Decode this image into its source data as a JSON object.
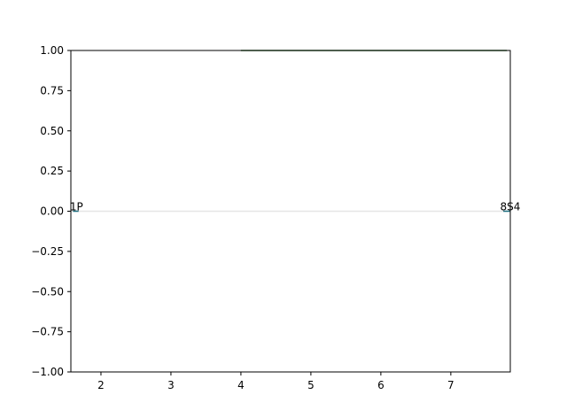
{
  "chart_data": {
    "type": "line",
    "title": "",
    "xlabel": "",
    "ylabel": "",
    "xlim": [
      1.57,
      7.85
    ],
    "ylim": [
      -1.0,
      1.0
    ],
    "x_ticks": [
      2,
      3,
      4,
      5,
      6,
      7
    ],
    "y_ticks": [
      1.0,
      0.75,
      0.5,
      0.25,
      0.0,
      -0.25,
      -0.5,
      -0.75,
      -1.0
    ],
    "x_tick_labels": [
      "2",
      "3",
      "4",
      "5",
      "6",
      "7"
    ],
    "y_tick_labels": [
      "1.00",
      "0.75",
      "0.50",
      "0.25",
      "0.00",
      "−0.25",
      "−0.50",
      "−0.75",
      "−1.00"
    ],
    "grid": false,
    "legend": "none",
    "colors": {
      "teal": "#1f6f80",
      "green": "#3a7a3a",
      "zero_line": "#e6e6e6"
    },
    "reference_line": {
      "y": 0.0
    },
    "series": [
      {
        "x": [
          4.0,
          7.8
        ],
        "values": [
          1.0,
          1.0
        ],
        "color": "#3a7a3a"
      },
      {
        "x": [
          1.6,
          1.68
        ],
        "values": [
          0.0,
          0.0
        ],
        "color": "#1f6f80"
      },
      {
        "x": [
          7.75,
          7.85
        ],
        "values": [
          0.0,
          0.0
        ],
        "color": "#1f6f80"
      }
    ],
    "annotations": [
      {
        "text": "1P",
        "x": 1.65,
        "y": 0.0
      },
      {
        "text": "8S4",
        "x": 7.85,
        "y": 0.0
      }
    ]
  }
}
